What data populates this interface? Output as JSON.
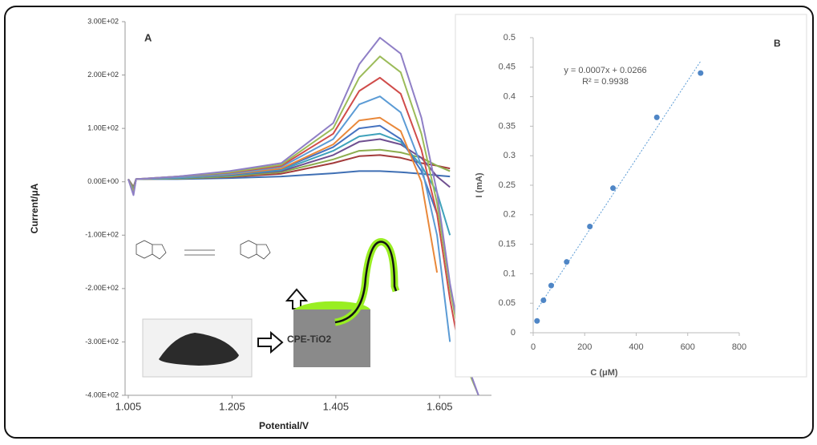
{
  "chart_data": [
    {
      "type": "line",
      "label": "A",
      "x_label": "Potential/V",
      "y_label": "Current/μA",
      "x": [
        1.005,
        1.015,
        1.02,
        1.1,
        1.2,
        1.3,
        1.4,
        1.45,
        1.49,
        1.53,
        1.57,
        1.6,
        1.625,
        1.65,
        1.68
      ],
      "series": [
        {
          "color": "#3f6fb4",
          "values": [
            5,
            -10,
            5,
            5,
            7,
            10,
            16,
            20,
            20,
            18,
            15,
            12,
            10,
            null,
            null
          ]
        },
        {
          "color": "#a33b3b",
          "values": [
            5,
            -10,
            5,
            6,
            9,
            15,
            35,
            48,
            50,
            45,
            35,
            30,
            25,
            null,
            null
          ]
        },
        {
          "color": "#8cad4e",
          "values": [
            5,
            -12,
            5,
            6,
            10,
            18,
            42,
            58,
            60,
            55,
            45,
            30,
            20,
            null,
            null
          ]
        },
        {
          "color": "#6f4f90",
          "values": [
            5,
            -15,
            5,
            7,
            12,
            20,
            50,
            75,
            80,
            70,
            45,
            10,
            -10,
            null,
            null
          ]
        },
        {
          "color": "#3fa2bb",
          "values": [
            5,
            -15,
            5,
            7,
            12,
            22,
            58,
            85,
            90,
            75,
            30,
            -20,
            -100,
            null,
            null
          ]
        },
        {
          "color": "#4673c0",
          "values": [
            5,
            -18,
            5,
            8,
            13,
            24,
            65,
            100,
            105,
            80,
            20,
            -60,
            null,
            null,
            null
          ]
        },
        {
          "color": "#e9883a",
          "values": [
            5,
            -18,
            5,
            8,
            14,
            25,
            70,
            115,
            120,
            95,
            0,
            -170,
            null,
            null,
            null
          ]
        },
        {
          "color": "#5b9bd5",
          "values": [
            5,
            -20,
            5,
            8,
            15,
            28,
            80,
            145,
            160,
            130,
            30,
            -100,
            -300,
            null,
            null
          ]
        },
        {
          "color": "#d04c4a",
          "values": [
            5,
            -20,
            5,
            10,
            17,
            30,
            90,
            170,
            195,
            165,
            60,
            -60,
            -220,
            -350,
            null
          ]
        },
        {
          "color": "#9bbb59",
          "values": [
            5,
            -20,
            5,
            10,
            18,
            32,
            100,
            195,
            235,
            205,
            90,
            -40,
            -200,
            -330,
            -400
          ]
        },
        {
          "color": "#8f7fc6",
          "values": [
            5,
            -25,
            5,
            10,
            20,
            35,
            110,
            220,
            270,
            240,
            120,
            -20,
            -190,
            -320,
            -400
          ]
        }
      ],
      "xlim": [
        1.005,
        1.705
      ],
      "xticks": [
        1.005,
        1.205,
        1.405,
        1.605
      ],
      "ylim": [
        -400,
        300
      ],
      "yticks": [
        {
          "value": -400,
          "label": "-4.00E+02"
        },
        {
          "value": -300,
          "label": "-3.00E+02"
        },
        {
          "value": -200,
          "label": "-2.00E+02"
        },
        {
          "value": -100,
          "label": "-1.00E+02"
        },
        {
          "value": 0,
          "label": "0.00E+00"
        },
        {
          "value": 100,
          "label": "1.00E+02"
        },
        {
          "value": 200,
          "label": "2.00E+02"
        },
        {
          "value": 300,
          "label": "3.00E+02"
        }
      ],
      "annotations": [
        "CPE-TiO2"
      ]
    },
    {
      "type": "scatter",
      "label": "B",
      "x_label": "C (μM)",
      "y_label": "I (mA)",
      "x": [
        15,
        40,
        70,
        130,
        220,
        310,
        480,
        650
      ],
      "values": [
        0.02,
        0.055,
        0.08,
        0.12,
        0.18,
        0.245,
        0.365,
        0.44
      ],
      "color": "#4f86c6",
      "xlim": [
        0,
        800
      ],
      "xticks": [
        0,
        200,
        400,
        600,
        800
      ],
      "ylim": [
        0,
        0.5
      ],
      "yticks": [
        0,
        0.05,
        0.1,
        0.15,
        0.2,
        0.25,
        0.3,
        0.35,
        0.4,
        0.45,
        0.5
      ],
      "annotations": [
        "y = 0.0007x + 0.0266",
        "R² = 0.9938"
      ]
    }
  ]
}
